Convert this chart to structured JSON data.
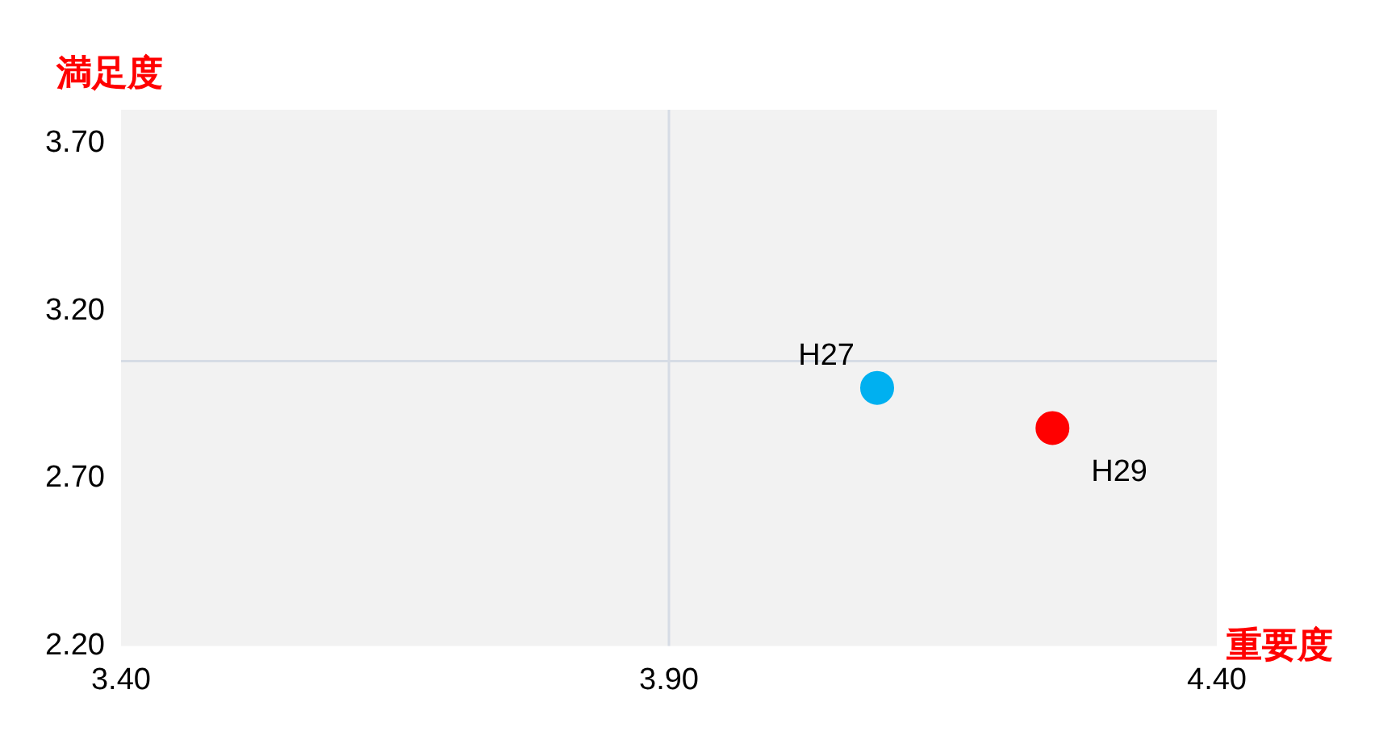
{
  "chart_data": {
    "type": "scatter",
    "xlabel": "重要度",
    "ylabel": "満足度",
    "series": [
      {
        "name": "H27",
        "color": "#00b0f0",
        "x": [
          4.09
        ],
        "values": [
          2.97
        ]
      },
      {
        "name": "H29",
        "color": "#ff0000",
        "x": [
          4.25
        ],
        "values": [
          2.85
        ]
      }
    ],
    "xlim": [
      3.4,
      4.4
    ],
    "xticks": [
      {
        "value": 3.4,
        "label": "3.40"
      },
      {
        "value": 3.9,
        "label": "3.90"
      },
      {
        "value": 4.4,
        "label": "4.40"
      }
    ],
    "ylim": [
      2.2,
      3.8
    ],
    "yticks": [
      {
        "value": 2.2,
        "label": "2.20"
      },
      {
        "value": 2.7,
        "label": "2.70"
      },
      {
        "value": 3.2,
        "label": "3.20"
      },
      {
        "value": 3.7,
        "label": "3.70"
      }
    ],
    "ref_lines": [
      {
        "axis": "x",
        "value": 3.9,
        "color": "#d6dce5"
      },
      {
        "axis": "y",
        "value": 3.05,
        "color": "#d6dce5"
      }
    ],
    "grid": false,
    "legend": false,
    "marker": "circle"
  }
}
